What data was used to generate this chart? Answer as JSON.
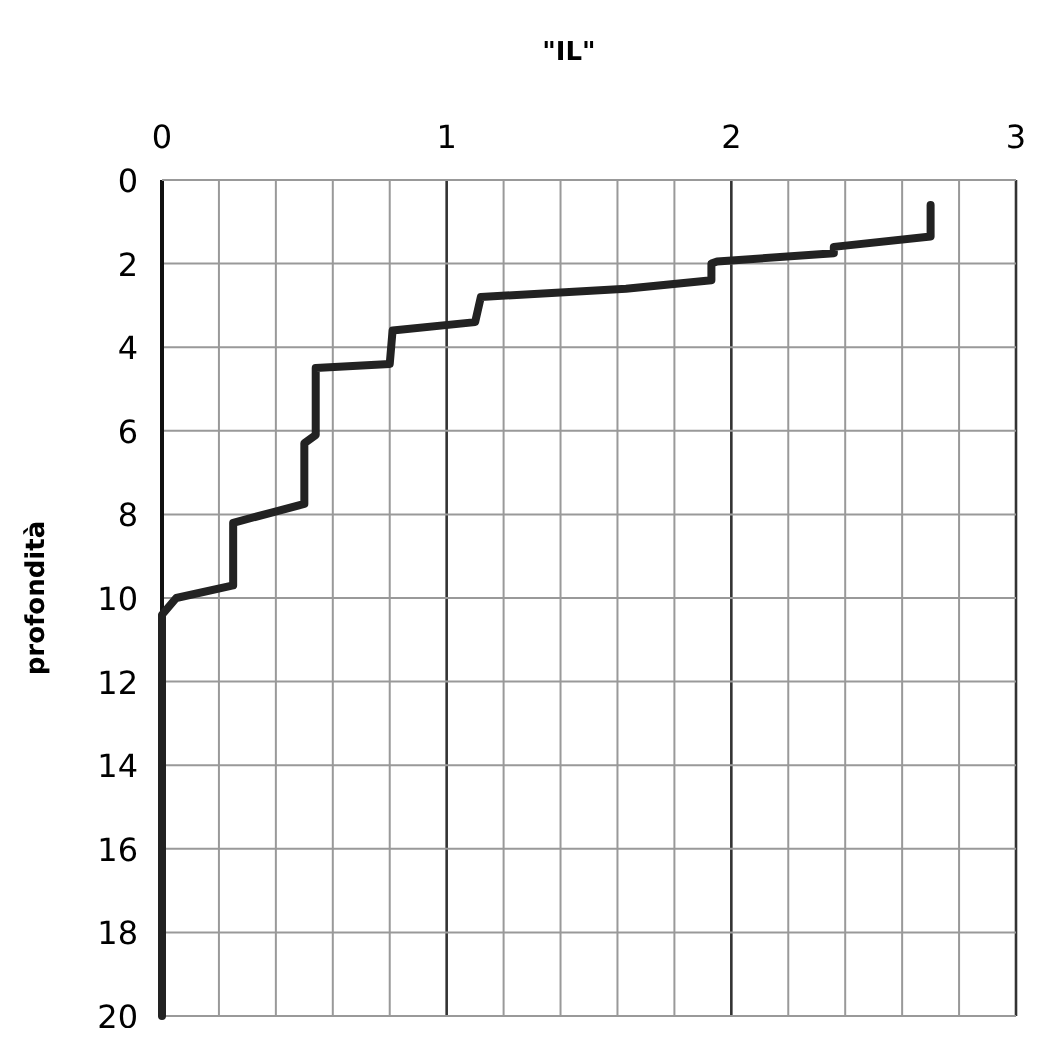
{
  "chart_data": {
    "type": "line",
    "title": "\"IL\"",
    "ylabel": "profondità",
    "xlim": [
      0,
      3
    ],
    "xticks": [
      0,
      {
        "value": 0.2,
        "label": null
      },
      {
        "value": 0.4,
        "label": null
      },
      {
        "value": 0.6,
        "label": null
      },
      {
        "value": 0.8,
        "label": null
      },
      1,
      {
        "value": 1.2,
        "label": null
      },
      {
        "value": 1.4,
        "label": null
      },
      {
        "value": 1.6,
        "label": null
      },
      {
        "value": 1.8,
        "label": null
      },
      2,
      {
        "value": 2.2,
        "label": null
      },
      {
        "value": 2.4,
        "label": null
      },
      {
        "value": 2.6,
        "label": null
      },
      {
        "value": 2.8,
        "label": null
      },
      3
    ],
    "ylim": [
      20,
      0
    ],
    "yticks": [
      0,
      2,
      4,
      6,
      8,
      10,
      12,
      14,
      16,
      18,
      20
    ],
    "grid": true,
    "marker": "none",
    "line_style": "solid",
    "series": [
      {
        "color": "#222222",
        "x": [
          2.7,
          2.7,
          2.36,
          2.36,
          1.95,
          1.93,
          1.93,
          1.63,
          1.12,
          1.1,
          0.81,
          0.8,
          0.54,
          0.54,
          0.5,
          0.5,
          0.25,
          0.25,
          0.05,
          0,
          0
        ],
        "values": [
          0.6,
          1.35,
          1.6,
          1.75,
          1.95,
          2.0,
          2.4,
          2.6,
          2.8,
          3.4,
          3.6,
          4.4,
          4.5,
          6.1,
          6.3,
          7.75,
          8.2,
          9.7,
          10.0,
          10.4,
          20
        ]
      }
    ]
  }
}
